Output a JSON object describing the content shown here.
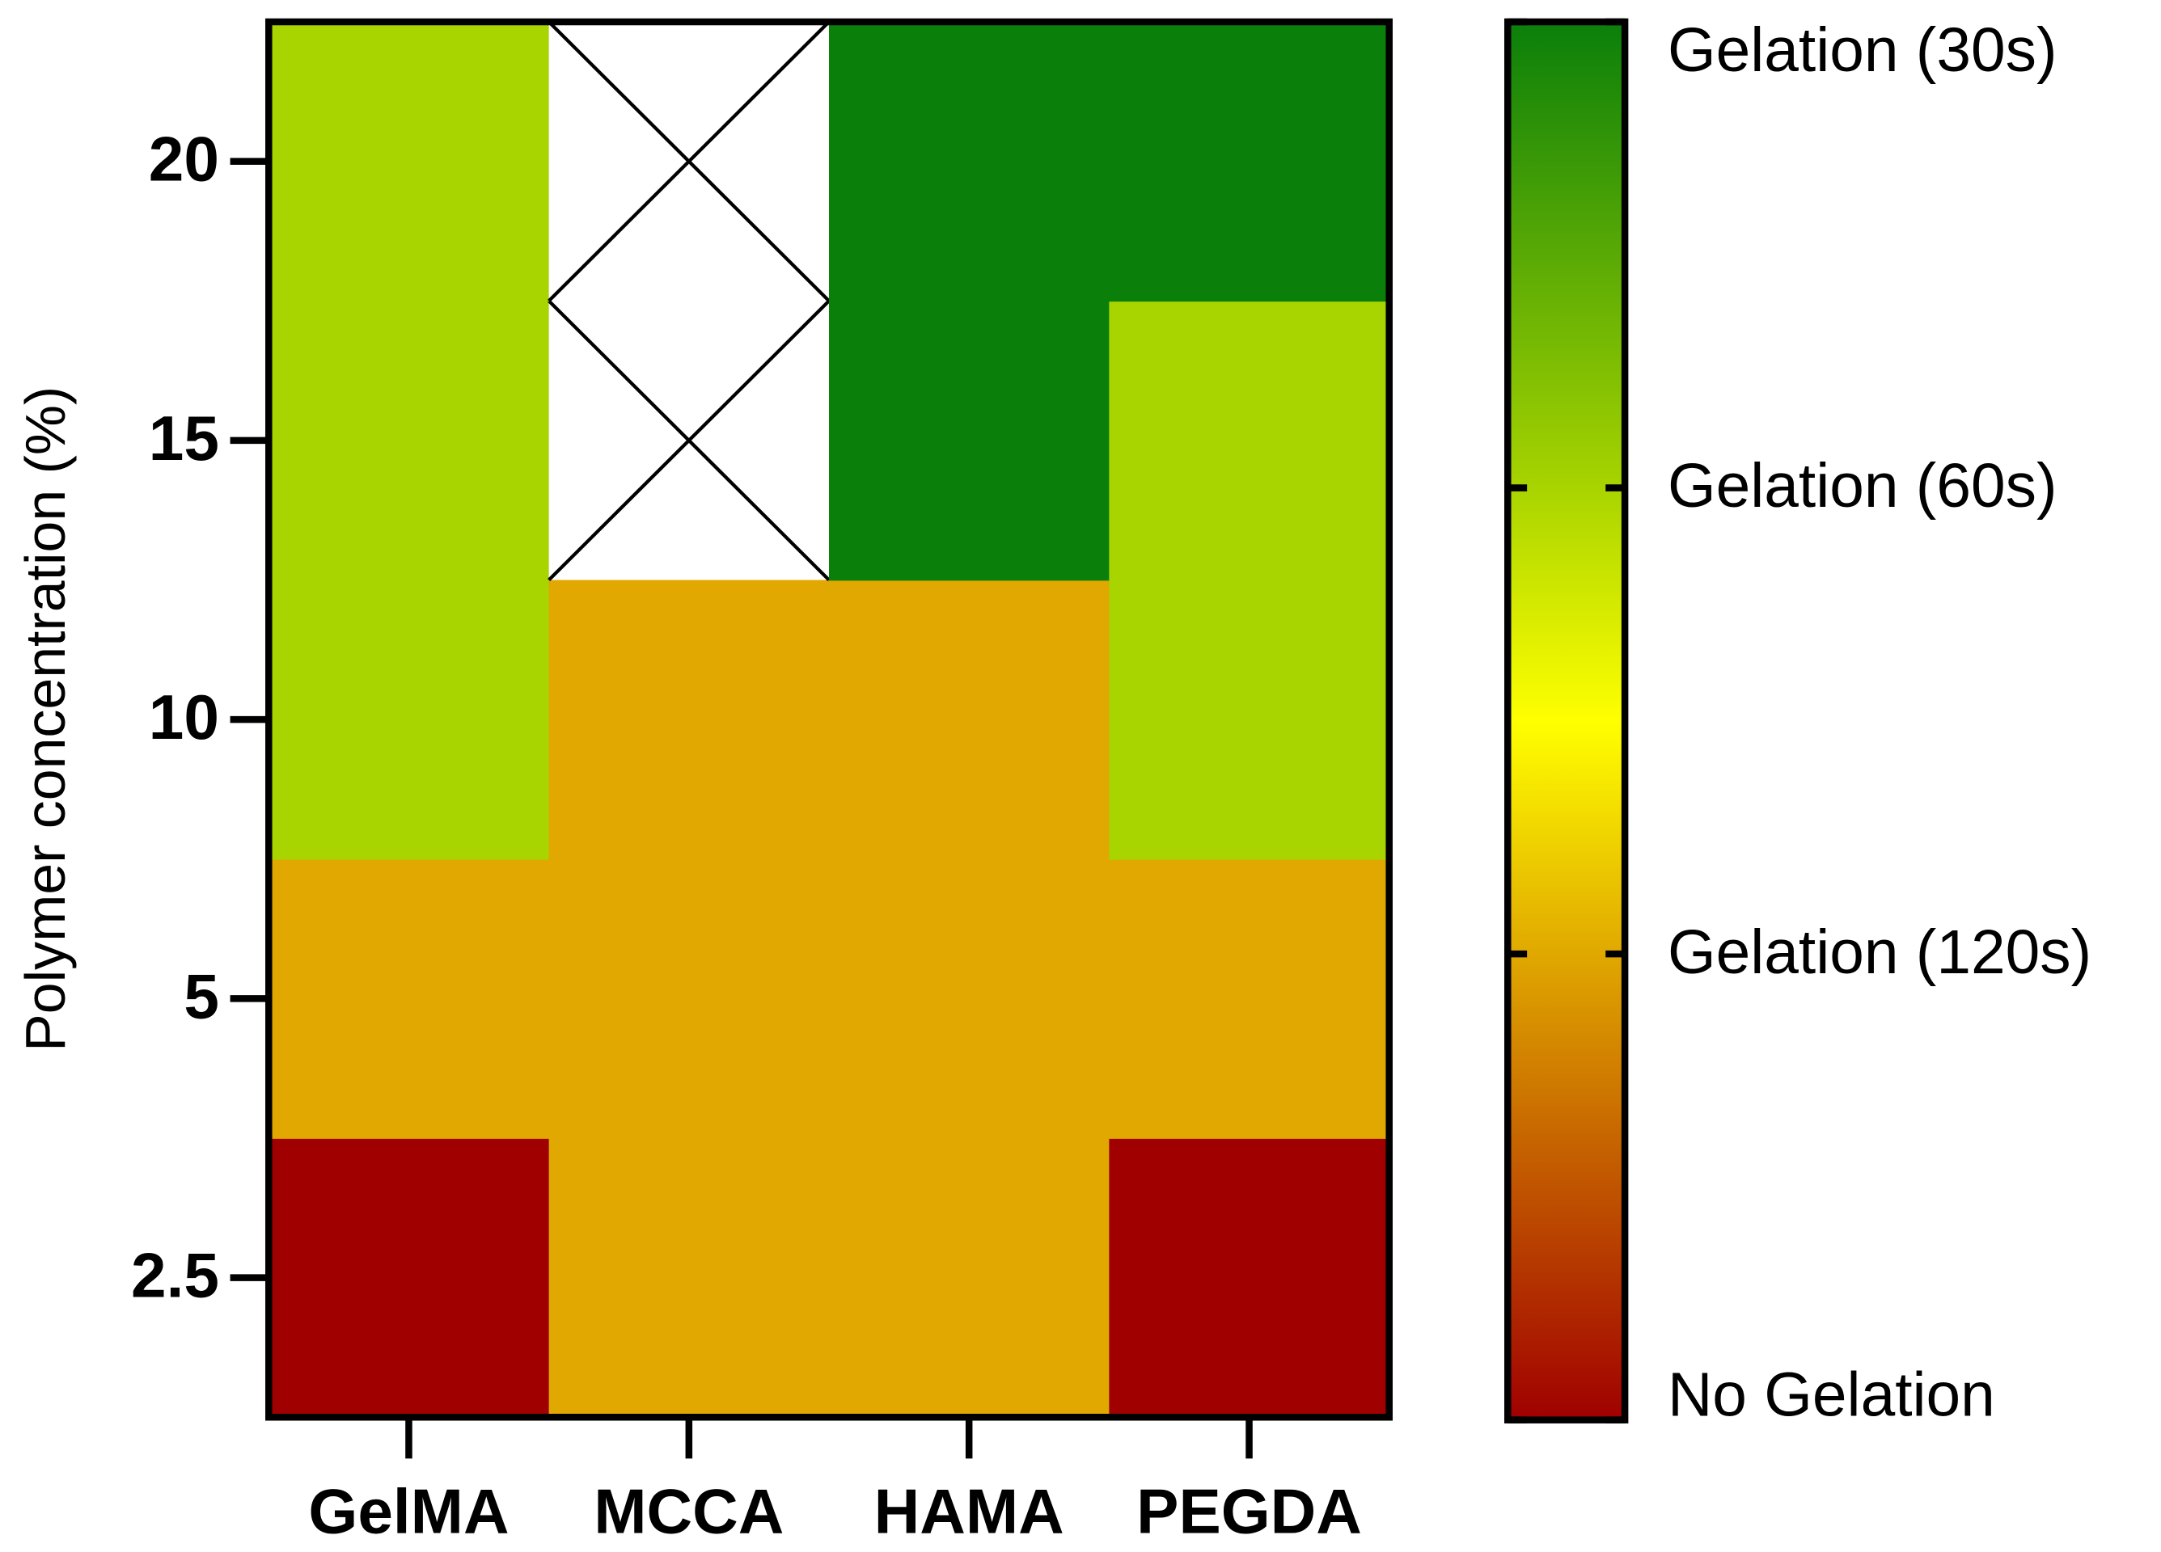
{
  "chart_data": {
    "type": "heatmap",
    "y_label": "Polymer concentration (%)",
    "x": [
      "GelMA",
      "MCCA",
      "HAMA",
      "PEGDA"
    ],
    "y": [
      2.5,
      5,
      10,
      15,
      20
    ],
    "z": [
      [
        0,
        1,
        1,
        0
      ],
      [
        1,
        1,
        1,
        1
      ],
      [
        2,
        1,
        1,
        2
      ],
      [
        2,
        null,
        3,
        2
      ],
      [
        2,
        null,
        3,
        3
      ]
    ],
    "zlim": [
      0,
      3
    ],
    "zticks": [
      {
        "value": 0,
        "label": "No Gelation"
      },
      {
        "value": 1,
        "label": "Gelation (120s)"
      },
      {
        "value": 2,
        "label": "Gelation (60s)"
      },
      {
        "value": 3,
        "label": "Gelation (30s)"
      }
    ],
    "colorscale": [
      [
        0,
        "#a00000"
      ],
      [
        1,
        "#e0a800"
      ],
      [
        1.5,
        "#ffff00"
      ],
      [
        2,
        "#a8d400"
      ],
      [
        3,
        "#0a7f0a"
      ]
    ]
  }
}
